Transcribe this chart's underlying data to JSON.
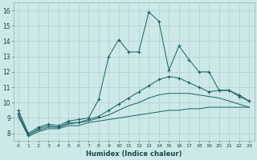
{
  "bg_color": "#cce8e8",
  "grid_color": "#b0d0d0",
  "line_color": "#1a6060",
  "xlabel": "Humidex (Indice chaleur)",
  "xlim": [
    -0.5,
    23.5
  ],
  "ylim": [
    7.5,
    16.5
  ],
  "xticks": [
    0,
    1,
    2,
    3,
    4,
    5,
    6,
    7,
    8,
    9,
    10,
    11,
    12,
    13,
    14,
    15,
    16,
    17,
    18,
    19,
    20,
    21,
    22,
    23
  ],
  "yticks": [
    8,
    9,
    10,
    11,
    12,
    13,
    14,
    15,
    16
  ],
  "s1_x": [
    0,
    1,
    2,
    3,
    4,
    5,
    6,
    7,
    8,
    9,
    10,
    11,
    12,
    13,
    14,
    15,
    16,
    17,
    18,
    19,
    20,
    21,
    22,
    23
  ],
  "s1_y": [
    9.5,
    8.0,
    8.4,
    8.6,
    8.5,
    8.8,
    8.9,
    9.0,
    10.2,
    13.0,
    14.1,
    13.3,
    13.3,
    15.9,
    15.3,
    12.1,
    13.7,
    12.8,
    12.0,
    12.0,
    10.8,
    10.8,
    10.4,
    10.1
  ],
  "s2_x": [
    0,
    1,
    2,
    3,
    4,
    5,
    6,
    7,
    8,
    9,
    10,
    11,
    12,
    13,
    14,
    15,
    16,
    17,
    18,
    19,
    20,
    21,
    22,
    23
  ],
  "s2_y": [
    9.3,
    7.9,
    8.3,
    8.5,
    8.4,
    8.7,
    8.7,
    8.9,
    9.1,
    9.5,
    9.9,
    10.3,
    10.7,
    11.1,
    11.5,
    11.7,
    11.6,
    11.3,
    11.0,
    10.7,
    10.8,
    10.8,
    10.5,
    10.1
  ],
  "s3_x": [
    0,
    1,
    2,
    3,
    4,
    5,
    6,
    7,
    8,
    9,
    10,
    11,
    12,
    13,
    14,
    15,
    16,
    17,
    18,
    19,
    20,
    21,
    22,
    23
  ],
  "s3_y": [
    9.2,
    7.9,
    8.2,
    8.4,
    8.4,
    8.6,
    8.7,
    8.8,
    9.0,
    9.2,
    9.5,
    9.8,
    10.0,
    10.3,
    10.5,
    10.6,
    10.6,
    10.6,
    10.5,
    10.4,
    10.3,
    10.1,
    9.9,
    9.7
  ],
  "s4_x": [
    0,
    1,
    2,
    3,
    4,
    5,
    6,
    7,
    8,
    9,
    10,
    11,
    12,
    13,
    14,
    15,
    16,
    17,
    18,
    19,
    20,
    21,
    22,
    23
  ],
  "s4_y": [
    9.1,
    7.8,
    8.1,
    8.3,
    8.3,
    8.5,
    8.5,
    8.7,
    8.8,
    8.9,
    9.0,
    9.1,
    9.2,
    9.3,
    9.4,
    9.5,
    9.5,
    9.6,
    9.6,
    9.7,
    9.7,
    9.7,
    9.7,
    9.7
  ]
}
